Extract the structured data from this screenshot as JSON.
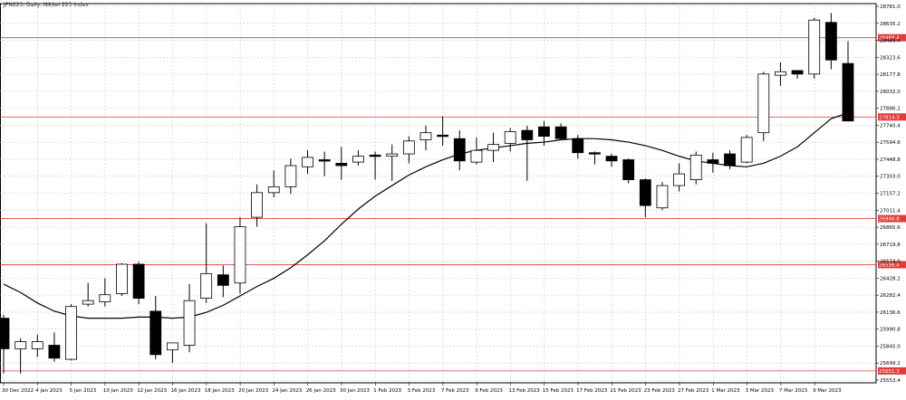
{
  "chart_data": {
    "type": "candlestick",
    "title": "JPN225, Daily: Nikkei 225 Index",
    "y_range": [
      25550,
      28780
    ],
    "y_ticks": [
      "28781.0",
      "28635.2",
      "28489.4",
      "28323.6",
      "28177.8",
      "28032.0",
      "27886.2",
      "27740.4",
      "27594.6",
      "27448.8",
      "27303.0",
      "27157.2",
      "27011.4",
      "26865.6",
      "26719.8",
      "26574.0",
      "26428.2",
      "26282.4",
      "26136.6",
      "25990.8",
      "25845.0",
      "25699.2",
      "25553.4"
    ],
    "x_labels": [
      "30 Dec 2022",
      "4 Jan 2023",
      "5 Jan 2023",
      "10 Jan 2023",
      "12 Jan 2023",
      "16 Jan 2023",
      "18 Jan 2023",
      "20 Jan 2023",
      "24 Jan 2023",
      "26 Jan 2023",
      "30 Jan 2023",
      "1 Feb 2023",
      "3 Feb 2023",
      "7 Feb 2023",
      "9 Feb 2023",
      "13 Feb 2023",
      "15 Feb 2023",
      "17 Feb 2023",
      "21 Feb 2023",
      "23 Feb 2023",
      "27 Feb 2023",
      "1 Mar 2023",
      "3 Mar 2023",
      "7 Mar 2023",
      "9 Mar 2023"
    ],
    "horizontal_levels": [
      {
        "value": 28489.4,
        "label": "28489.4"
      },
      {
        "value": 27814.3,
        "label": "27814.3"
      },
      {
        "value": 26948.8,
        "label": "26948.8"
      },
      {
        "value": 26556.4,
        "label": "26556.4"
      },
      {
        "value": 25651.3,
        "label": "25651.3"
      }
    ],
    "candles": [
      {
        "o": 26100,
        "h": 26130,
        "l": 25630,
        "c": 25840
      },
      {
        "o": 25840,
        "h": 25930,
        "l": 25630,
        "c": 25900
      },
      {
        "o": 25840,
        "h": 25960,
        "l": 25770,
        "c": 25900
      },
      {
        "o": 25870,
        "h": 25980,
        "l": 25730,
        "c": 25760
      },
      {
        "o": 25750,
        "h": 26220,
        "l": 25740,
        "c": 26200
      },
      {
        "o": 26220,
        "h": 26400,
        "l": 26200,
        "c": 26250
      },
      {
        "o": 26240,
        "h": 26440,
        "l": 26200,
        "c": 26300
      },
      {
        "o": 26310,
        "h": 26570,
        "l": 26290,
        "c": 26560
      },
      {
        "o": 26560,
        "h": 26580,
        "l": 26220,
        "c": 26270
      },
      {
        "o": 26160,
        "h": 26290,
        "l": 25750,
        "c": 25790
      },
      {
        "o": 25830,
        "h": 25890,
        "l": 25720,
        "c": 25890
      },
      {
        "o": 25870,
        "h": 26390,
        "l": 25810,
        "c": 26250
      },
      {
        "o": 26270,
        "h": 26910,
        "l": 26230,
        "c": 26480
      },
      {
        "o": 26470,
        "h": 26550,
        "l": 26280,
        "c": 26380
      },
      {
        "o": 26400,
        "h": 26960,
        "l": 26310,
        "c": 26880
      },
      {
        "o": 26960,
        "h": 27240,
        "l": 26880,
        "c": 27170
      },
      {
        "o": 27170,
        "h": 27360,
        "l": 27130,
        "c": 27220
      },
      {
        "o": 27220,
        "h": 27460,
        "l": 27160,
        "c": 27400
      },
      {
        "o": 27390,
        "h": 27530,
        "l": 27330,
        "c": 27470
      },
      {
        "o": 27450,
        "h": 27520,
        "l": 27310,
        "c": 27440
      },
      {
        "o": 27420,
        "h": 27560,
        "l": 27280,
        "c": 27400
      },
      {
        "o": 27430,
        "h": 27530,
        "l": 27400,
        "c": 27480
      },
      {
        "o": 27490,
        "h": 27520,
        "l": 27280,
        "c": 27480
      },
      {
        "o": 27480,
        "h": 27580,
        "l": 27270,
        "c": 27500
      },
      {
        "o": 27500,
        "h": 27650,
        "l": 27420,
        "c": 27610
      },
      {
        "o": 27620,
        "h": 27740,
        "l": 27530,
        "c": 27680
      },
      {
        "o": 27660,
        "h": 27820,
        "l": 27570,
        "c": 27650
      },
      {
        "o": 27630,
        "h": 27700,
        "l": 27360,
        "c": 27440
      },
      {
        "o": 27430,
        "h": 27640,
        "l": 27410,
        "c": 27530
      },
      {
        "o": 27530,
        "h": 27680,
        "l": 27430,
        "c": 27580
      },
      {
        "o": 27590,
        "h": 27720,
        "l": 27520,
        "c": 27690
      },
      {
        "o": 27700,
        "h": 27740,
        "l": 27270,
        "c": 27620
      },
      {
        "o": 27730,
        "h": 27780,
        "l": 27570,
        "c": 27650
      },
      {
        "o": 27730,
        "h": 27760,
        "l": 27620,
        "c": 27630
      },
      {
        "o": 27630,
        "h": 27660,
        "l": 27460,
        "c": 27510
      },
      {
        "o": 27510,
        "h": 27520,
        "l": 27410,
        "c": 27500
      },
      {
        "o": 27480,
        "h": 27500,
        "l": 27390,
        "c": 27440
      },
      {
        "o": 27450,
        "h": 27460,
        "l": 27250,
        "c": 27280
      },
      {
        "o": 27280,
        "h": 27290,
        "l": 26960,
        "c": 27060
      },
      {
        "o": 27040,
        "h": 27260,
        "l": 27020,
        "c": 27230
      },
      {
        "o": 27230,
        "h": 27420,
        "l": 27180,
        "c": 27330
      },
      {
        "o": 27280,
        "h": 27520,
        "l": 27240,
        "c": 27490
      },
      {
        "o": 27450,
        "h": 27510,
        "l": 27340,
        "c": 27420
      },
      {
        "o": 27500,
        "h": 27530,
        "l": 27370,
        "c": 27400
      },
      {
        "o": 27430,
        "h": 27660,
        "l": 27420,
        "c": 27640
      },
      {
        "o": 27680,
        "h": 28200,
        "l": 27610,
        "c": 28180
      },
      {
        "o": 28170,
        "h": 28280,
        "l": 28080,
        "c": 28200
      },
      {
        "o": 28210,
        "h": 28210,
        "l": 28140,
        "c": 28180
      },
      {
        "o": 28180,
        "h": 28660,
        "l": 28140,
        "c": 28640
      },
      {
        "o": 28620,
        "h": 28700,
        "l": 28220,
        "c": 28300
      },
      {
        "o": 28270,
        "h": 28460,
        "l": 27780,
        "c": 27780
      }
    ],
    "moving_average": [
      26390,
      26320,
      26230,
      26160,
      26120,
      26100,
      26100,
      26100,
      26110,
      26110,
      26100,
      26110,
      26150,
      26210,
      26290,
      26370,
      26440,
      26530,
      26640,
      26760,
      26900,
      27030,
      27140,
      27230,
      27320,
      27390,
      27450,
      27500,
      27530,
      27550,
      27570,
      27590,
      27600,
      27620,
      27630,
      27630,
      27620,
      27600,
      27570,
      27530,
      27480,
      27440,
      27420,
      27400,
      27390,
      27420,
      27480,
      27560,
      27680,
      27800,
      27850
    ]
  }
}
